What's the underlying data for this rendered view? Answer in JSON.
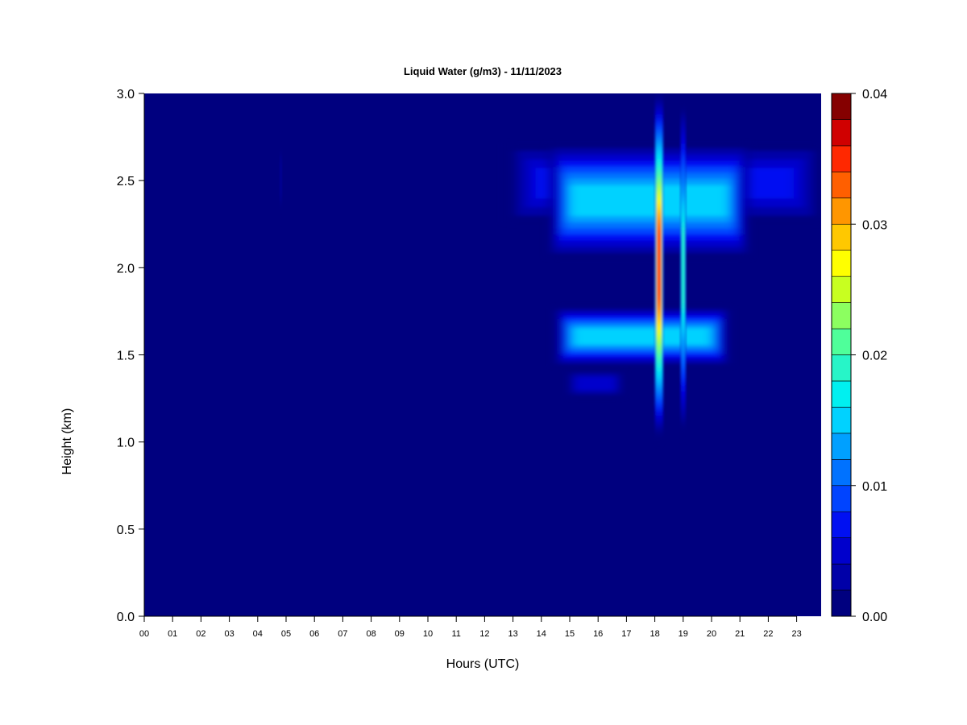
{
  "chart_data": {
    "type": "heatmap",
    "title": "Liquid Water (g/m3) - 11/11/2023",
    "xlabel": "Hours (UTC)",
    "ylabel": "Height (km)",
    "x_ticks": [
      "00",
      "01",
      "02",
      "03",
      "04",
      "05",
      "06",
      "07",
      "08",
      "09",
      "10",
      "11",
      "12",
      "13",
      "14",
      "15",
      "16",
      "17",
      "18",
      "19",
      "20",
      "21",
      "22",
      "23"
    ],
    "y_ticks": [
      "0.0",
      "0.5",
      "1.0",
      "1.5",
      "2.0",
      "2.5",
      "3.0"
    ],
    "xlim": [
      0,
      23.9
    ],
    "ylim": [
      0,
      3.0
    ],
    "grid": false,
    "colorbar": {
      "placement": "right",
      "min": 0.0,
      "max": 0.04,
      "levels": 20,
      "tick_labels": [
        "0.00",
        "0.01",
        "0.02",
        "0.03",
        "0.04"
      ],
      "tick_values": [
        0.0,
        0.01,
        0.02,
        0.03,
        0.04
      ],
      "colors": [
        "#00007f",
        "#0000a8",
        "#0000cc",
        "#0010f2",
        "#0044ff",
        "#0072ff",
        "#00a0ff",
        "#00d2ff",
        "#00f0f0",
        "#27f5c8",
        "#4fff9a",
        "#8cff60",
        "#c8ff20",
        "#ffff00",
        "#ffc800",
        "#ff9600",
        "#ff5f00",
        "#ff2800",
        "#d00000",
        "#850000"
      ]
    },
    "cloud_features": [
      {
        "hour_start": 12.8,
        "hour_end": 23.9,
        "height_bottom": 2.25,
        "height_top": 2.72,
        "peak_value": 0.007
      },
      {
        "hour_start": 14.3,
        "hour_end": 21.3,
        "height_bottom": 2.05,
        "height_top": 2.72,
        "peak_value": 0.016
      },
      {
        "hour_start": 14.5,
        "hour_end": 20.6,
        "height_bottom": 1.43,
        "height_top": 1.78,
        "peak_value": 0.015
      },
      {
        "hour_start": 15.0,
        "hour_end": 16.8,
        "height_bottom": 1.25,
        "height_top": 1.42,
        "peak_value": 0.005
      },
      {
        "hour_start": 18.0,
        "hour_end": 18.3,
        "height_bottom": 1.03,
        "height_top": 3.0,
        "peak_value": 0.036
      },
      {
        "hour_start": 18.9,
        "hour_end": 19.1,
        "height_bottom": 1.05,
        "height_top": 2.95,
        "peak_value": 0.02
      },
      {
        "hour_start": 4.78,
        "hour_end": 4.85,
        "height_bottom": 2.3,
        "height_top": 2.72,
        "peak_value": 0.003
      }
    ]
  }
}
